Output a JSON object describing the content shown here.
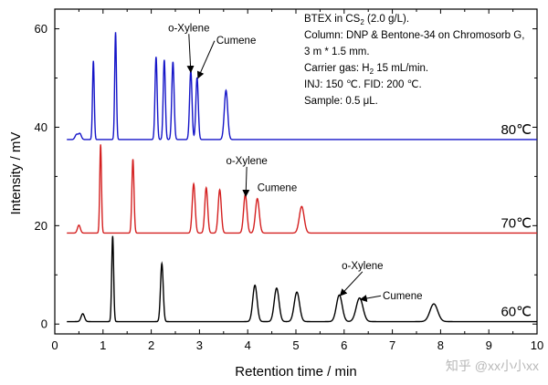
{
  "chart_data": {
    "type": "line",
    "title": "",
    "xlabel": "Retention time / min",
    "ylabel": "Intensity / mV",
    "xlim": [
      0,
      10
    ],
    "ylim": [
      -2,
      64
    ],
    "x_ticks": [
      0,
      1,
      2,
      3,
      4,
      5,
      6,
      7,
      8,
      9,
      10
    ],
    "y_ticks": [
      0,
      20,
      40,
      60
    ],
    "grid": false,
    "series": [
      {
        "name": "80℃",
        "label": "80℃",
        "color": "#1515c8",
        "baseline": 37.5,
        "peaks": [
          {
            "t": 0.45,
            "h": 1.0,
            "w": 0.03
          },
          {
            "t": 0.52,
            "h": 1.2,
            "w": 0.03
          },
          {
            "t": 0.8,
            "h": 16.0,
            "w": 0.018
          },
          {
            "t": 1.26,
            "h": 21.8,
            "w": 0.018
          },
          {
            "t": 2.1,
            "h": 16.8,
            "w": 0.022
          },
          {
            "t": 2.27,
            "h": 16.2,
            "w": 0.022
          },
          {
            "t": 2.45,
            "h": 15.8,
            "w": 0.024
          },
          {
            "t": 2.82,
            "h": 14.0,
            "w": 0.025
          },
          {
            "t": 2.95,
            "h": 12.6,
            "w": 0.025
          },
          {
            "t": 3.55,
            "h": 10.0,
            "w": 0.035
          }
        ]
      },
      {
        "name": "70℃",
        "label": "70℃",
        "color": "#d42020",
        "baseline": 18.5,
        "peaks": [
          {
            "t": 0.5,
            "h": 1.6,
            "w": 0.03
          },
          {
            "t": 0.95,
            "h": 18.0,
            "w": 0.018
          },
          {
            "t": 1.62,
            "h": 15.0,
            "w": 0.022
          },
          {
            "t": 2.88,
            "h": 10.0,
            "w": 0.03
          },
          {
            "t": 3.14,
            "h": 9.2,
            "w": 0.03
          },
          {
            "t": 3.42,
            "h": 8.8,
            "w": 0.032
          },
          {
            "t": 3.95,
            "h": 7.8,
            "w": 0.035
          },
          {
            "t": 4.2,
            "h": 7.0,
            "w": 0.04
          },
          {
            "t": 5.12,
            "h": 5.4,
            "w": 0.05
          }
        ]
      },
      {
        "name": "60℃",
        "label": "60℃",
        "color": "#000000",
        "baseline": 0.5,
        "peaks": [
          {
            "t": 0.58,
            "h": 1.6,
            "w": 0.035
          },
          {
            "t": 1.2,
            "h": 17.4,
            "w": 0.02
          },
          {
            "t": 2.22,
            "h": 11.8,
            "w": 0.028
          },
          {
            "t": 4.15,
            "h": 7.4,
            "w": 0.045
          },
          {
            "t": 4.6,
            "h": 6.8,
            "w": 0.05
          },
          {
            "t": 5.02,
            "h": 6.0,
            "w": 0.055
          },
          {
            "t": 5.9,
            "h": 5.4,
            "w": 0.06
          },
          {
            "t": 6.32,
            "h": 4.8,
            "w": 0.07
          },
          {
            "t": 7.86,
            "h": 3.6,
            "w": 0.08
          }
        ]
      }
    ],
    "annotations": [
      {
        "text": "o-Xylene",
        "tx": 2.35,
        "ty": 59.5,
        "ax": 2.82,
        "ay": 51.2
      },
      {
        "text": "Cumene",
        "tx": 3.35,
        "ty": 57.0,
        "ax": 2.97,
        "ay": 50.0
      },
      {
        "text": "o-Xylene",
        "tx": 3.55,
        "ty": 32.5,
        "ax": 3.96,
        "ay": 26.0
      },
      {
        "text": "Cumene",
        "tx": 4.2,
        "ty": 27.0,
        "ax": 4.22,
        "ay": 25.2
      },
      {
        "text": "o-Xylene",
        "tx": 5.95,
        "ty": 11.2,
        "ax": 5.92,
        "ay": 5.8
      },
      {
        "text": "Cumene",
        "tx": 6.8,
        "ty": 5.0,
        "ax": 6.34,
        "ay": 5.0
      }
    ],
    "info_lines": [
      {
        "main": "BTEX in CS",
        "sub": "2",
        "rest": " (2.0 g/L)."
      },
      {
        "main": "Column: DNP & Bentone-34 on Chromosorb G,"
      },
      {
        "main": "     3 m * 1.5 mm."
      },
      {
        "main": "Carrier gas: H",
        "sub": "2",
        "rest": " 15 mL/min."
      },
      {
        "main": "INJ: 150 ℃. FID: 200 ℃."
      },
      {
        "main": "Sample: 0.5 μL."
      }
    ]
  },
  "watermark": "知乎 @xx小小xx"
}
